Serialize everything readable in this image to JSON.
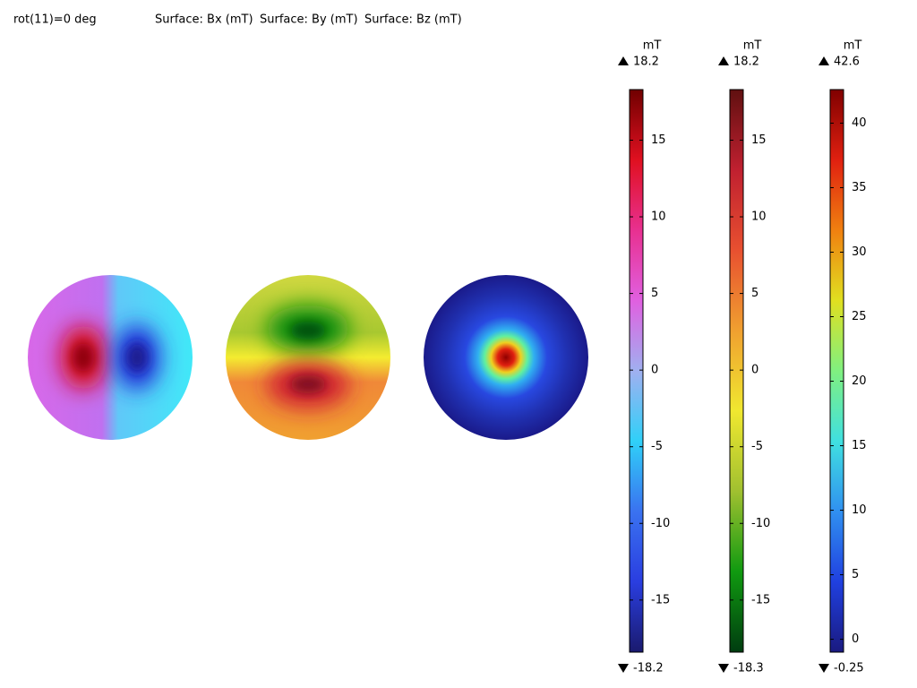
{
  "parameter": "rot(11)=0 deg",
  "chart_data": [
    {
      "type": "surface",
      "title": "Surface: Bx (mT)",
      "unit": "mT",
      "max": 18.2,
      "min": -18.2,
      "ylim": [
        -18.4,
        18.3
      ],
      "yticks": [
        -15,
        -10,
        -5,
        0,
        5,
        10,
        15
      ],
      "colormap": [
        "#1a1a6e",
        "#2a3ee0",
        "#3a72f0",
        "#30d0f8",
        "#a0b0f0",
        "#e060e0",
        "#e83090",
        "#e01020",
        "#700000"
      ]
    },
    {
      "type": "surface",
      "title": "Surface: By (mT)",
      "unit": "mT",
      "max": 18.2,
      "min": -18.3,
      "ylim": [
        -18.4,
        18.3
      ],
      "yticks": [
        -15,
        -10,
        -5,
        0,
        5,
        10,
        15
      ],
      "colormap": [
        "#003c10",
        "#109a10",
        "#a0c030",
        "#f0e830",
        "#f0a030",
        "#e85030",
        "#c02030",
        "#601010"
      ]
    },
    {
      "type": "surface",
      "title": "Surface: Bz (mT)",
      "unit": "mT",
      "max": 42.6,
      "min": -0.25,
      "ylim": [
        -1,
        42.6
      ],
      "yticks": [
        0,
        5,
        10,
        15,
        20,
        25,
        30,
        35,
        40
      ],
      "colormap": [
        "#1a1a80",
        "#2040e0",
        "#3090f0",
        "#40e0e0",
        "#80f080",
        "#e0e020",
        "#f08010",
        "#e02010",
        "#800000"
      ]
    }
  ]
}
